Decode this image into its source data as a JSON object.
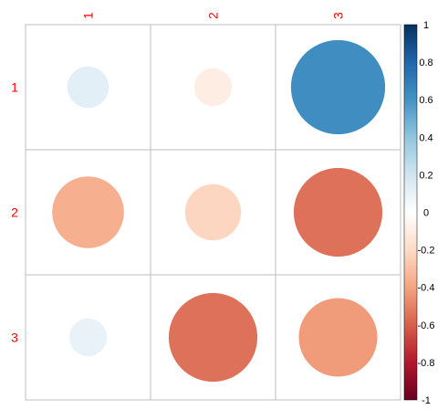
{
  "chart_data": {
    "type": "heatmap",
    "subtype": "correlation-circles",
    "row_labels": [
      "1",
      "2",
      "3"
    ],
    "col_labels": [
      "1",
      "2",
      "3"
    ],
    "matrix": [
      [
        0.12,
        -0.1,
        0.62
      ],
      [
        -0.36,
        -0.22,
        -0.55
      ],
      [
        0.1,
        -0.55,
        -0.43
      ]
    ],
    "color_scale": {
      "range": [
        -1,
        1
      ],
      "ticks": [
        1,
        0.8,
        0.6,
        0.4,
        0.2,
        0,
        -0.2,
        -0.4,
        -0.6,
        -0.8,
        -1
      ],
      "stops": [
        "#67001f",
        "#b2182b",
        "#d6604d",
        "#f4a582",
        "#fddbc7",
        "#ffffff",
        "#d1e5f0",
        "#92c5de",
        "#4393c3",
        "#2166ac",
        "#053061"
      ]
    },
    "label_color": "#ff0000",
    "grid_color": "#bebebe"
  }
}
